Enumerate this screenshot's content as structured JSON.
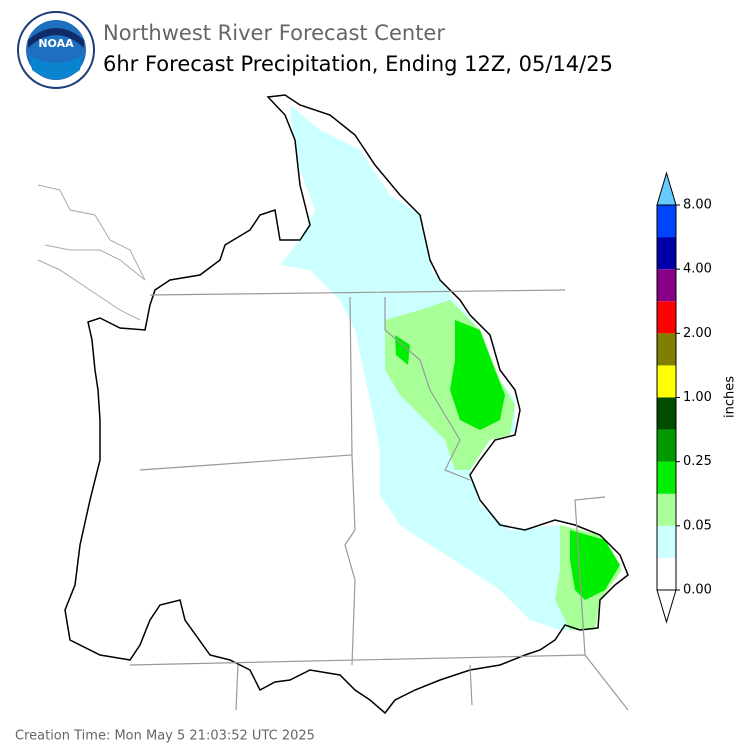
{
  "header": {
    "title": "Northwest River Forecast Center",
    "subtitle": "6hr Forecast Precipitation, Ending 12Z, 05/14/25"
  },
  "logo": {
    "text": "NOAA"
  },
  "colorbar": {
    "label": "inches",
    "colors": [
      "#ffffff",
      "#ccffff",
      "#a8ff98",
      "#00ee00",
      "#009900",
      "#004d00",
      "#ffff00",
      "#808000",
      "#ff0000",
      "#880088",
      "#0000aa",
      "#0044ff"
    ],
    "under_color": "#ffffff",
    "over_color": "#66ccff",
    "ticks": [
      {
        "value": 0,
        "label": "0.00"
      },
      {
        "value": 0.05,
        "label": "0.05"
      },
      {
        "value": 0.25,
        "label": "0.25"
      },
      {
        "value": 1,
        "label": "1.00"
      },
      {
        "value": 2,
        "label": "2.00"
      },
      {
        "value": 4,
        "label": "4.00"
      },
      {
        "value": 8,
        "label": "8.00"
      }
    ]
  },
  "footer": "Creation Time: Mon May 5 21:03:52 UTC 2025"
}
